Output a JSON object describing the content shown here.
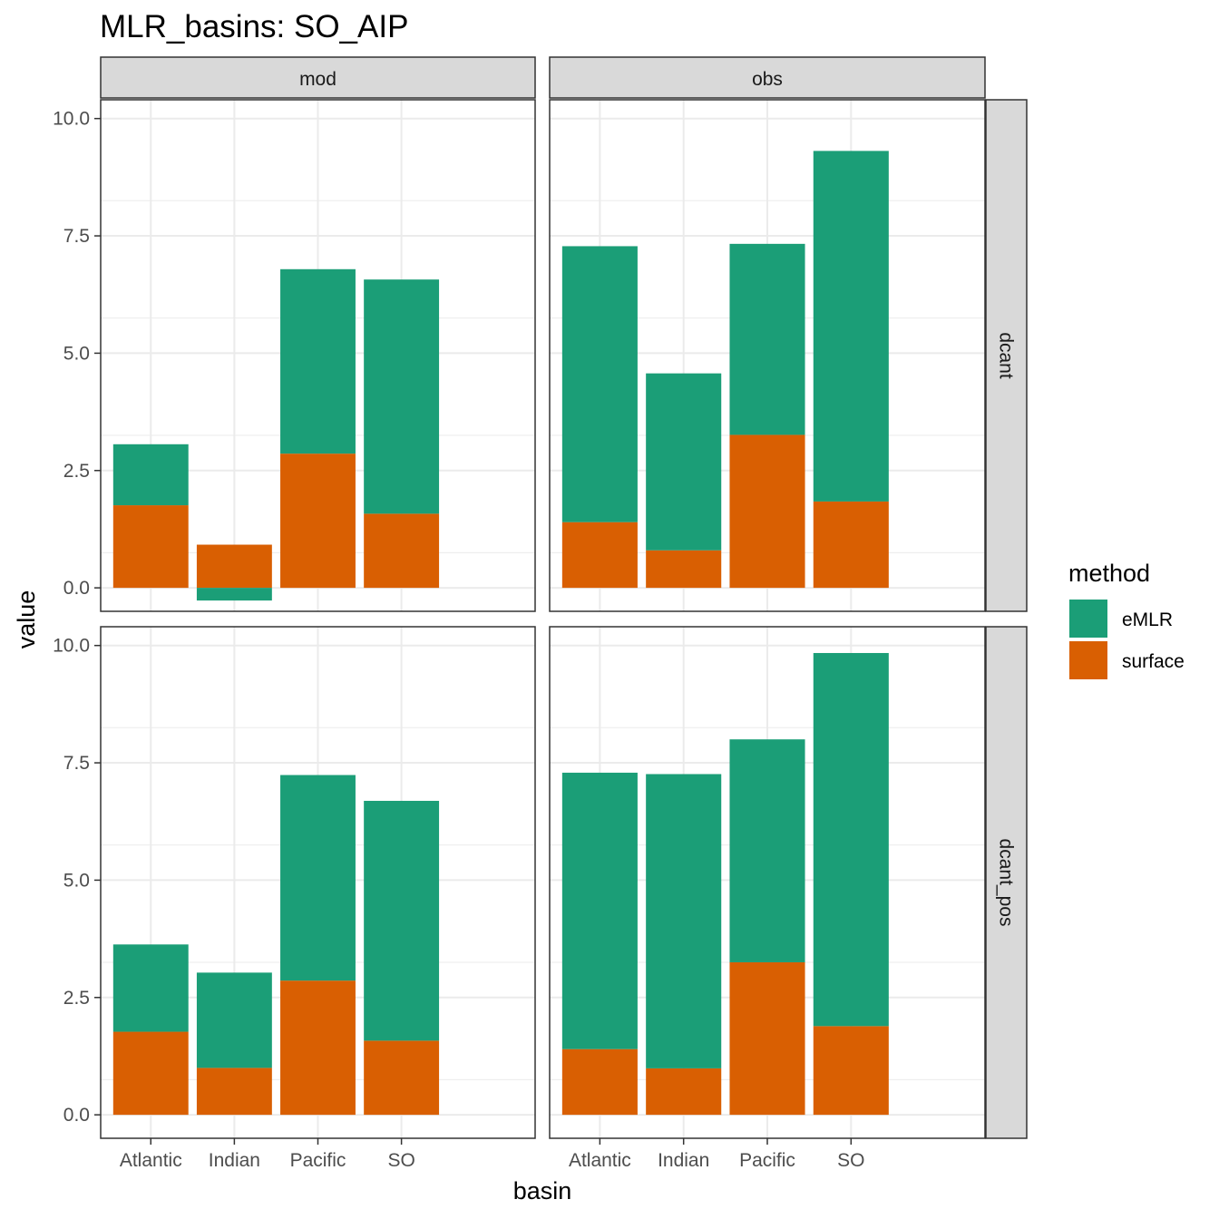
{
  "chart_data": {
    "type": "bar",
    "stacked": true,
    "title": "MLR_basins: SO_AIP",
    "xlabel": "basin",
    "ylabel": "value",
    "categories": [
      "Atlantic",
      "Indian",
      "Pacific",
      "SO"
    ],
    "ylim": [
      -0.5,
      10.4
    ],
    "yticks": [
      "0.0",
      "2.5",
      "5.0",
      "7.5",
      "10.0"
    ],
    "grid": true,
    "legend": {
      "title": "method",
      "position": "right",
      "entries": [
        {
          "name": "eMLR",
          "color": "#1b9e77"
        },
        {
          "name": "surface",
          "color": "#d95f02"
        }
      ]
    },
    "facet_columns": [
      "mod",
      "obs"
    ],
    "facet_rows": [
      "dcant",
      "dcant_pos"
    ],
    "panels": [
      {
        "column": "mod",
        "row": "dcant",
        "series": [
          {
            "name": "surface",
            "values": [
              1.76,
              0.92,
              2.86,
              1.58
            ]
          },
          {
            "name": "eMLR",
            "values": [
              1.3,
              -0.27,
              3.93,
              4.99
            ]
          }
        ]
      },
      {
        "column": "obs",
        "row": "dcant",
        "series": [
          {
            "name": "surface",
            "values": [
              1.4,
              0.8,
              3.26,
              1.84
            ]
          },
          {
            "name": "eMLR",
            "values": [
              5.88,
              3.77,
              4.07,
              7.47
            ]
          }
        ]
      },
      {
        "column": "mod",
        "row": "dcant_pos",
        "series": [
          {
            "name": "surface",
            "values": [
              1.77,
              1.0,
              2.86,
              1.58
            ]
          },
          {
            "name": "eMLR",
            "values": [
              1.86,
              2.03,
              4.38,
              5.11
            ]
          }
        ]
      },
      {
        "column": "obs",
        "row": "dcant_pos",
        "series": [
          {
            "name": "surface",
            "values": [
              1.4,
              0.99,
              3.25,
              1.89
            ]
          },
          {
            "name": "eMLR",
            "values": [
              5.89,
              6.27,
              4.75,
              7.95
            ]
          }
        ]
      }
    ]
  }
}
